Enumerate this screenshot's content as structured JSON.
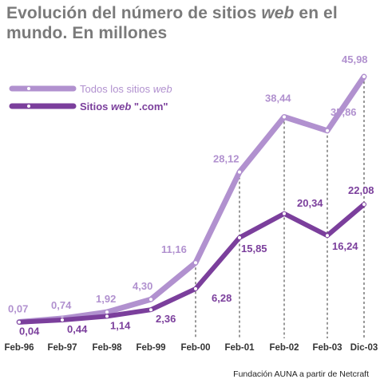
{
  "title": {
    "part1": "Evolución del número de sitios ",
    "emphasis": "web",
    "part2": " en el mundo. En millones"
  },
  "source": "Fundación AUNA a partir de Netcraft",
  "colors": {
    "series_all": "#b191cf",
    "series_com": "#7b3f9c",
    "label_all": "#b191cf",
    "label_com": "#7b3f9c",
    "guide": "#333333"
  },
  "chart_data": {
    "type": "line",
    "categories": [
      "Feb-96",
      "Feb-97",
      "Feb-98",
      "Feb-99",
      "Feb-00",
      "Feb-01",
      "Feb-02",
      "Feb-03",
      "Dic-03"
    ],
    "series": [
      {
        "name": "Todos los sitios web",
        "legend": {
          "plain": "Todos los sitios ",
          "em": "web",
          "tail": ""
        },
        "values": [
          0.07,
          0.74,
          1.92,
          4.3,
          11.16,
          28.12,
          38.44,
          35.86,
          45.98
        ],
        "labels": [
          "0,07",
          "0,74",
          "1,92",
          "4,30",
          "11,16",
          "28,12",
          "38,44",
          "35,86",
          "45,98"
        ]
      },
      {
        "name": "Sitios web \".com\"",
        "legend": {
          "plain": "Sitios ",
          "em": "web",
          "tail": " \".com\""
        },
        "values": [
          0.04,
          0.44,
          1.14,
          2.36,
          6.28,
          15.85,
          20.34,
          16.24,
          22.08
        ],
        "labels": [
          "0,04",
          "0,44",
          "1,14",
          "2,36",
          "6,28",
          "15,85",
          "20,34",
          "16,24",
          "22,08"
        ]
      }
    ],
    "xlabel": "",
    "ylabel": "",
    "ylim": [
      0,
      50
    ],
    "grid": false,
    "legend_position": "top-left"
  }
}
